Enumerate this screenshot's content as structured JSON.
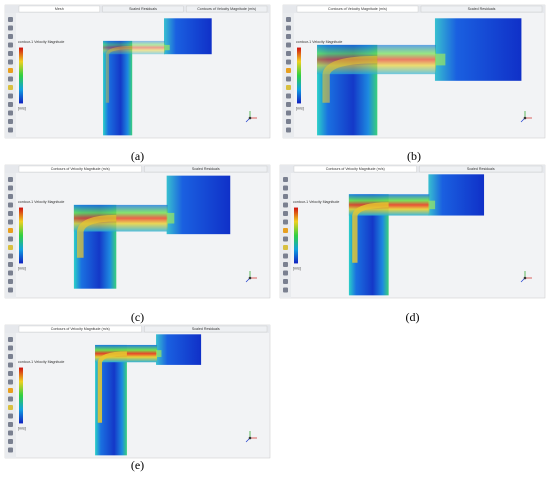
{
  "panels": [
    {
      "label": "(a)",
      "tabs": [
        "Mesh",
        "Scaled Residuals",
        "Contours of Velocity Magnitude (m/s)"
      ],
      "legend_title": "contour-1 Velocity Magnitude",
      "legend_unit": "[m/s]"
    },
    {
      "label": "(b)",
      "tabs": [
        "Contours of Velocity Magnitude (m/s)",
        "Scaled Residuals"
      ],
      "legend_title": "contour-1 Velocity Magnitude",
      "legend_unit": "[m/s]"
    },
    {
      "label": "(c)",
      "tabs": [
        "Contours of Velocity Magnitude (m/s)",
        "Scaled Residuals"
      ],
      "legend_title": "contour-1 Velocity Magnitude",
      "legend_unit": "[m/s]"
    },
    {
      "label": "(d)",
      "tabs": [
        "Contours of Velocity Magnitude (m/s)",
        "Scaled Residuals"
      ],
      "legend_title": "contour-1 Velocity Magnitude",
      "legend_unit": "[m/s]"
    },
    {
      "label": "(e)",
      "tabs": [
        "Contours of Velocity Magnitude (m/s)",
        "Scaled Residuals"
      ],
      "legend_title": "contour-1 Velocity Magnitude",
      "legend_unit": "[m/s]"
    }
  ]
}
